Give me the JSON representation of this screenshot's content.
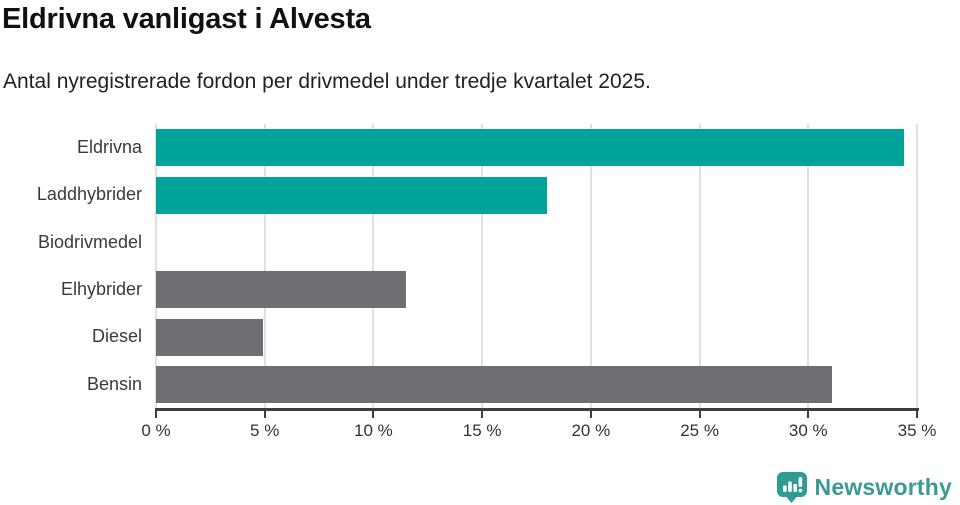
{
  "chart_data": {
    "type": "bar",
    "orientation": "horizontal",
    "title": "Eldrivna vanligast i Alvesta",
    "subtitle": "Antal nyregistrerade fordon per drivmedel under tredje kvartalet 2025.",
    "categories": [
      "Eldrivna",
      "Laddhybrider",
      "Biodrivmedel",
      "Elhybrider",
      "Diesel",
      "Bensin"
    ],
    "values": [
      34.4,
      18.0,
      0,
      11.5,
      4.9,
      31.1
    ],
    "unit": "%",
    "xlabel": "",
    "ylabel": "",
    "xlim": [
      0,
      35
    ],
    "x_ticks": [
      0,
      5,
      10,
      15,
      20,
      25,
      30,
      35
    ],
    "x_tick_labels": [
      "0 %",
      "5 %",
      "10 %",
      "15 %",
      "20 %",
      "25 %",
      "30 %",
      "35 %"
    ],
    "bar_colors": [
      "#00a29a",
      "#00a29a",
      "#00a29a",
      "#6e6e73",
      "#6e6e73",
      "#6e6e73"
    ],
    "highlight_color": "#00a29a",
    "default_color": "#6e6e73",
    "grid": true,
    "gridline_color": "#e0e0e0",
    "axis_color": "#3d3d3d",
    "legend": "none"
  },
  "footer": {
    "brand_label": "Newsworthy",
    "brand_color": "#3b9a94",
    "icon_color": "#2f9c94"
  }
}
